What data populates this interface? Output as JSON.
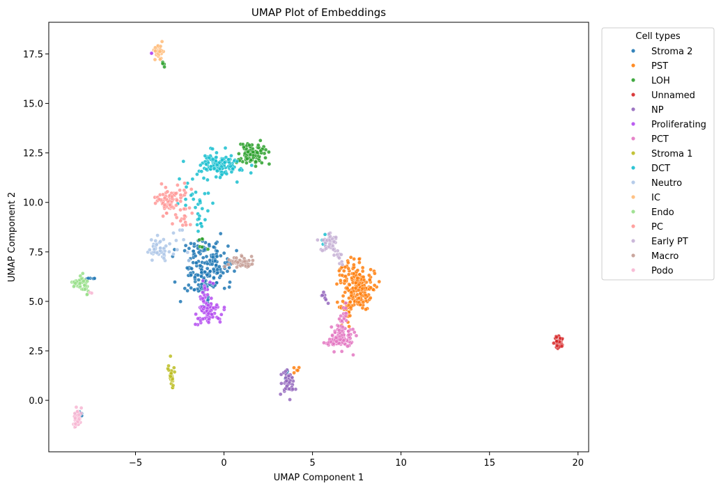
{
  "chart_data": {
    "type": "scatter",
    "title": "UMAP Plot of Embeddings",
    "xlabel": "UMAP Component 1",
    "ylabel": "UMAP Component 2",
    "xlim": [
      -9.9,
      20.6
    ],
    "ylim": [
      -2.6,
      19.1
    ],
    "xticks": [
      -5,
      0,
      5,
      10,
      15,
      20
    ],
    "xtick_labels": [
      "−5",
      "0",
      "5",
      "10",
      "15",
      "20"
    ],
    "yticks": [
      0.0,
      2.5,
      5.0,
      7.5,
      10.0,
      12.5,
      15.0,
      17.5
    ],
    "ytick_labels": [
      "0.0",
      "2.5",
      "5.0",
      "7.5",
      "10.0",
      "12.5",
      "15.0",
      "17.5"
    ],
    "grid": false,
    "legend_title": "Cell types",
    "legend_position": "outside upper right",
    "series": [
      {
        "name": "Stroma 2",
        "color": "#1f77b4",
        "clusters": [
          {
            "cx": -1.2,
            "cy": 6.6,
            "sx": 0.65,
            "sy": 0.75,
            "n": 170
          },
          {
            "cx": -0.2,
            "cy": 7.0,
            "sx": 0.4,
            "sy": 0.4,
            "n": 25
          },
          {
            "cx": -8.2,
            "cy": -0.6,
            "sx": 0.15,
            "sy": 0.1,
            "n": 5
          },
          {
            "cx": 3.5,
            "cy": 1.3,
            "sx": 0.1,
            "sy": 0.15,
            "n": 4
          },
          {
            "cx": -7.5,
            "cy": 6.1,
            "sx": 0.15,
            "sy": 0.1,
            "n": 5
          }
        ]
      },
      {
        "name": "PST",
        "color": "#ff7f0e",
        "clusters": [
          {
            "cx": 7.6,
            "cy": 5.7,
            "sx": 0.4,
            "sy": 0.55,
            "n": 200
          },
          {
            "cx": 6.9,
            "cy": 4.7,
            "sx": 0.25,
            "sy": 0.4,
            "n": 30
          },
          {
            "cx": 6.8,
            "cy": 6.5,
            "sx": 0.2,
            "sy": 0.3,
            "n": 15
          },
          {
            "cx": 4.1,
            "cy": 1.5,
            "sx": 0.1,
            "sy": 0.1,
            "n": 5
          }
        ]
      },
      {
        "name": "LOH",
        "color": "#2ca02c",
        "clusters": [
          {
            "cx": 1.6,
            "cy": 12.5,
            "sx": 0.4,
            "sy": 0.28,
            "n": 90
          },
          {
            "cx": -3.5,
            "cy": 17.0,
            "sx": 0.1,
            "sy": 0.08,
            "n": 4
          },
          {
            "cx": -1.2,
            "cy": 8.0,
            "sx": 0.2,
            "sy": 0.3,
            "n": 6
          }
        ]
      },
      {
        "name": "Unnamed",
        "color": "#d62728",
        "clusters": [
          {
            "cx": 18.9,
            "cy": 2.9,
            "sx": 0.12,
            "sy": 0.18,
            "n": 45
          }
        ]
      },
      {
        "name": "NP",
        "color": "#9467bd",
        "clusters": [
          {
            "cx": 3.6,
            "cy": 0.9,
            "sx": 0.18,
            "sy": 0.3,
            "n": 50
          },
          {
            "cx": 5.7,
            "cy": 5.2,
            "sx": 0.15,
            "sy": 0.12,
            "n": 8
          }
        ]
      },
      {
        "name": "Proliferating",
        "color": "#b44cf0",
        "clusters": [
          {
            "cx": -0.8,
            "cy": 4.5,
            "sx": 0.38,
            "sy": 0.28,
            "n": 80
          },
          {
            "cx": -1.1,
            "cy": 5.4,
            "sx": 0.2,
            "sy": 0.25,
            "n": 15
          },
          {
            "cx": -4.1,
            "cy": 17.6,
            "sx": 0.05,
            "sy": 0.05,
            "n": 2
          }
        ]
      },
      {
        "name": "PCT",
        "color": "#e377c2",
        "clusters": [
          {
            "cx": 6.6,
            "cy": 3.1,
            "sx": 0.3,
            "sy": 0.35,
            "n": 80
          },
          {
            "cx": 6.7,
            "cy": 4.2,
            "sx": 0.12,
            "sy": 0.35,
            "n": 20
          },
          {
            "cx": 6.0,
            "cy": 2.9,
            "sx": 0.25,
            "sy": 0.1,
            "n": 10
          }
        ]
      },
      {
        "name": "Stroma 1",
        "color": "#bcbd22",
        "clusters": [
          {
            "cx": -3.0,
            "cy": 1.3,
            "sx": 0.1,
            "sy": 0.3,
            "n": 30
          }
        ]
      },
      {
        "name": "DCT",
        "color": "#17becf",
        "clusters": [
          {
            "cx": -0.2,
            "cy": 11.9,
            "sx": 0.55,
            "sy": 0.3,
            "n": 130
          },
          {
            "cx": -1.5,
            "cy": 10.6,
            "sx": 0.6,
            "sy": 0.6,
            "n": 25
          },
          {
            "cx": 5.6,
            "cy": 8.1,
            "sx": 0.2,
            "sy": 0.2,
            "n": 6
          },
          {
            "cx": -1.3,
            "cy": 8.8,
            "sx": 0.2,
            "sy": 0.3,
            "n": 10
          }
        ]
      },
      {
        "name": "Neutro",
        "color": "#aec7e8",
        "clusters": [
          {
            "cx": -3.7,
            "cy": 7.6,
            "sx": 0.3,
            "sy": 0.25,
            "n": 45
          },
          {
            "cx": -2.5,
            "cy": 7.8,
            "sx": 0.4,
            "sy": 0.5,
            "n": 10
          }
        ]
      },
      {
        "name": "IC",
        "color": "#ffbb78",
        "clusters": [
          {
            "cx": -3.7,
            "cy": 17.6,
            "sx": 0.12,
            "sy": 0.2,
            "n": 35
          }
        ]
      },
      {
        "name": "Endo",
        "color": "#98df8a",
        "clusters": [
          {
            "cx": -8.1,
            "cy": 5.9,
            "sx": 0.25,
            "sy": 0.18,
            "n": 50
          },
          {
            "cx": -7.7,
            "cy": 5.4,
            "sx": 0.1,
            "sy": 0.1,
            "n": 3
          }
        ]
      },
      {
        "name": "PC",
        "color": "#ff9896",
        "clusters": [
          {
            "cx": -3.1,
            "cy": 10.1,
            "sx": 0.35,
            "sy": 0.35,
            "n": 70
          },
          {
            "cx": -2.4,
            "cy": 9.1,
            "sx": 0.3,
            "sy": 0.35,
            "n": 15
          },
          {
            "cx": -2.3,
            "cy": 10.6,
            "sx": 0.25,
            "sy": 0.15,
            "n": 10
          }
        ]
      },
      {
        "name": "Early PT",
        "color": "#c5b0d5",
        "clusters": [
          {
            "cx": 5.9,
            "cy": 8.0,
            "sx": 0.25,
            "sy": 0.3,
            "n": 40
          },
          {
            "cx": 6.5,
            "cy": 7.2,
            "sx": 0.2,
            "sy": 0.25,
            "n": 10
          }
        ]
      },
      {
        "name": "Macro",
        "color": "#c49c94",
        "clusters": [
          {
            "cx": 1.0,
            "cy": 6.95,
            "sx": 0.35,
            "sy": 0.15,
            "n": 45
          }
        ]
      },
      {
        "name": "Podo",
        "color": "#f7b6d2",
        "clusters": [
          {
            "cx": -8.3,
            "cy": -0.95,
            "sx": 0.12,
            "sy": 0.25,
            "n": 40
          },
          {
            "cx": -7.5,
            "cy": 5.35,
            "sx": 0.05,
            "sy": 0.05,
            "n": 2
          }
        ]
      }
    ]
  }
}
